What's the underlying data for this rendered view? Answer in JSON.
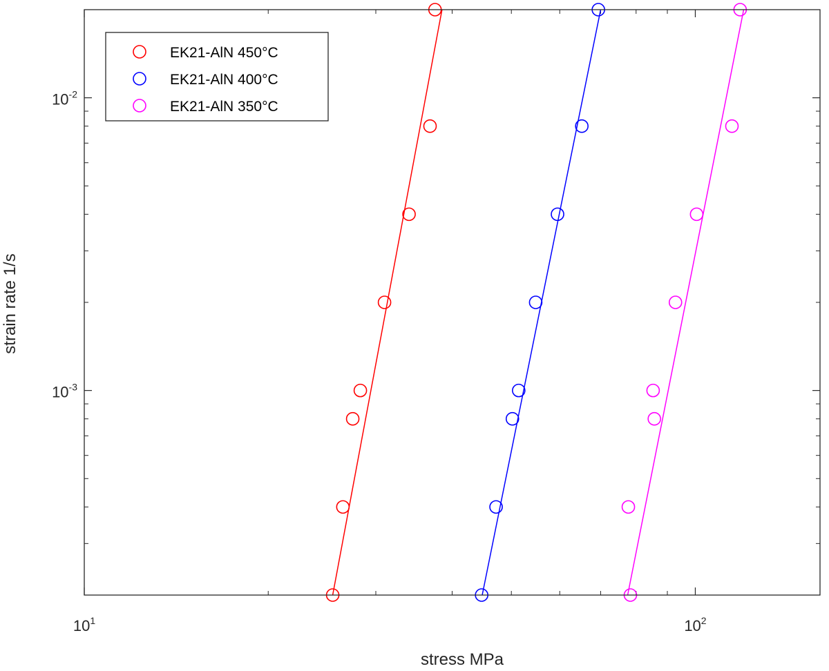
{
  "chart_data": {
    "type": "scatter",
    "title": "",
    "xlabel": "stress MPa",
    "ylabel": "strain rate 1/s",
    "xscale": "log",
    "yscale": "log",
    "xlim": [
      10,
      160
    ],
    "ylim": [
      0.0002,
      0.02
    ],
    "x_ticks": [
      {
        "base": "10",
        "exp": "1",
        "value": 10
      },
      {
        "base": "10",
        "exp": "2",
        "value": 100
      }
    ],
    "y_ticks": [
      {
        "base": "10",
        "exp": "-3",
        "value": 0.001
      },
      {
        "base": "10",
        "exp": "-2",
        "value": 0.01
      }
    ],
    "grid": false,
    "legend_position": "top-left",
    "series": [
      {
        "name": "EK21-AlN 450°C",
        "color": "#ff0000",
        "marker": "circle",
        "points": [
          [
            25.5,
            0.0002
          ],
          [
            26.5,
            0.0004
          ],
          [
            27.5,
            0.0008
          ],
          [
            28.3,
            0.001
          ],
          [
            31.0,
            0.002
          ],
          [
            34.0,
            0.004
          ],
          [
            36.8,
            0.008
          ],
          [
            37.5,
            0.02
          ]
        ],
        "fit": [
          [
            25.5,
            0.0002
          ],
          [
            38.5,
            0.02
          ]
        ]
      },
      {
        "name": "EK21-AlN 400°C",
        "color": "#0000ff",
        "marker": "circle",
        "points": [
          [
            44.7,
            0.0002
          ],
          [
            47.2,
            0.0004
          ],
          [
            50.2,
            0.0008
          ],
          [
            51.4,
            0.001
          ],
          [
            54.8,
            0.002
          ],
          [
            59.5,
            0.004
          ],
          [
            65.2,
            0.008
          ],
          [
            69.4,
            0.02
          ]
        ],
        "fit": [
          [
            44.8,
            0.0002
          ],
          [
            70.0,
            0.02
          ]
        ]
      },
      {
        "name": "EK21-AlN 350°C",
        "color": "#ff00ff",
        "marker": "circle",
        "points": [
          [
            78.3,
            0.0002
          ],
          [
            77.7,
            0.0004
          ],
          [
            85.7,
            0.0008
          ],
          [
            85.3,
            0.001
          ],
          [
            92.8,
            0.002
          ],
          [
            100.5,
            0.004
          ],
          [
            114.8,
            0.008
          ],
          [
            118.4,
            0.02
          ]
        ],
        "fit": [
          [
            77.5,
            0.0002
          ],
          [
            120.0,
            0.02
          ]
        ]
      }
    ]
  }
}
